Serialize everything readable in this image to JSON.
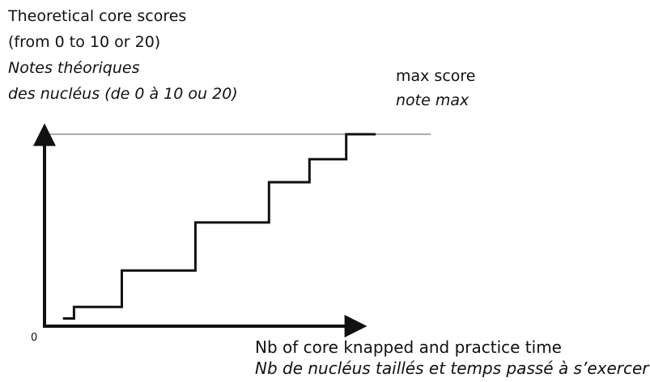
{
  "y_axis_label": {
    "english": [
      "Theoretical core scores",
      "(from 0 to 10 or 20)"
    ],
    "french": [
      "Notes théoriques",
      "des nucléus (de 0 à 10 ou 20)"
    ]
  },
  "max_label": {
    "english": "max score",
    "french": "note max"
  },
  "origin_label": "0",
  "x_axis_label": {
    "english": "Nb of core knapped and practice time",
    "french": "Nb de nucléus taillés et temps passé à s’exercer"
  },
  "colors": {
    "line": "#111111",
    "max_line": "#777777",
    "background": "#ffffff"
  },
  "chart_data": {
    "type": "line",
    "style": "step",
    "steps": [
      {
        "x": 0.05,
        "y": 0.04
      },
      {
        "x": 0.08,
        "y": 0.04
      },
      {
        "x": 0.08,
        "y": 0.1
      },
      {
        "x": 0.21,
        "y": 0.1
      },
      {
        "x": 0.21,
        "y": 0.29
      },
      {
        "x": 0.41,
        "y": 0.29
      },
      {
        "x": 0.41,
        "y": 0.54
      },
      {
        "x": 0.61,
        "y": 0.54
      },
      {
        "x": 0.61,
        "y": 0.75
      },
      {
        "x": 0.72,
        "y": 0.75
      },
      {
        "x": 0.72,
        "y": 0.87
      },
      {
        "x": 0.82,
        "y": 0.87
      },
      {
        "x": 0.82,
        "y": 1.0
      },
      {
        "x": 0.9,
        "y": 1.0
      }
    ],
    "max_line_y": 1.0,
    "max_line_x_range": [
      0.0,
      1.05
    ],
    "xlim": [
      0,
      1.1
    ],
    "ylim": [
      0,
      1.05
    ],
    "grid": false
  }
}
